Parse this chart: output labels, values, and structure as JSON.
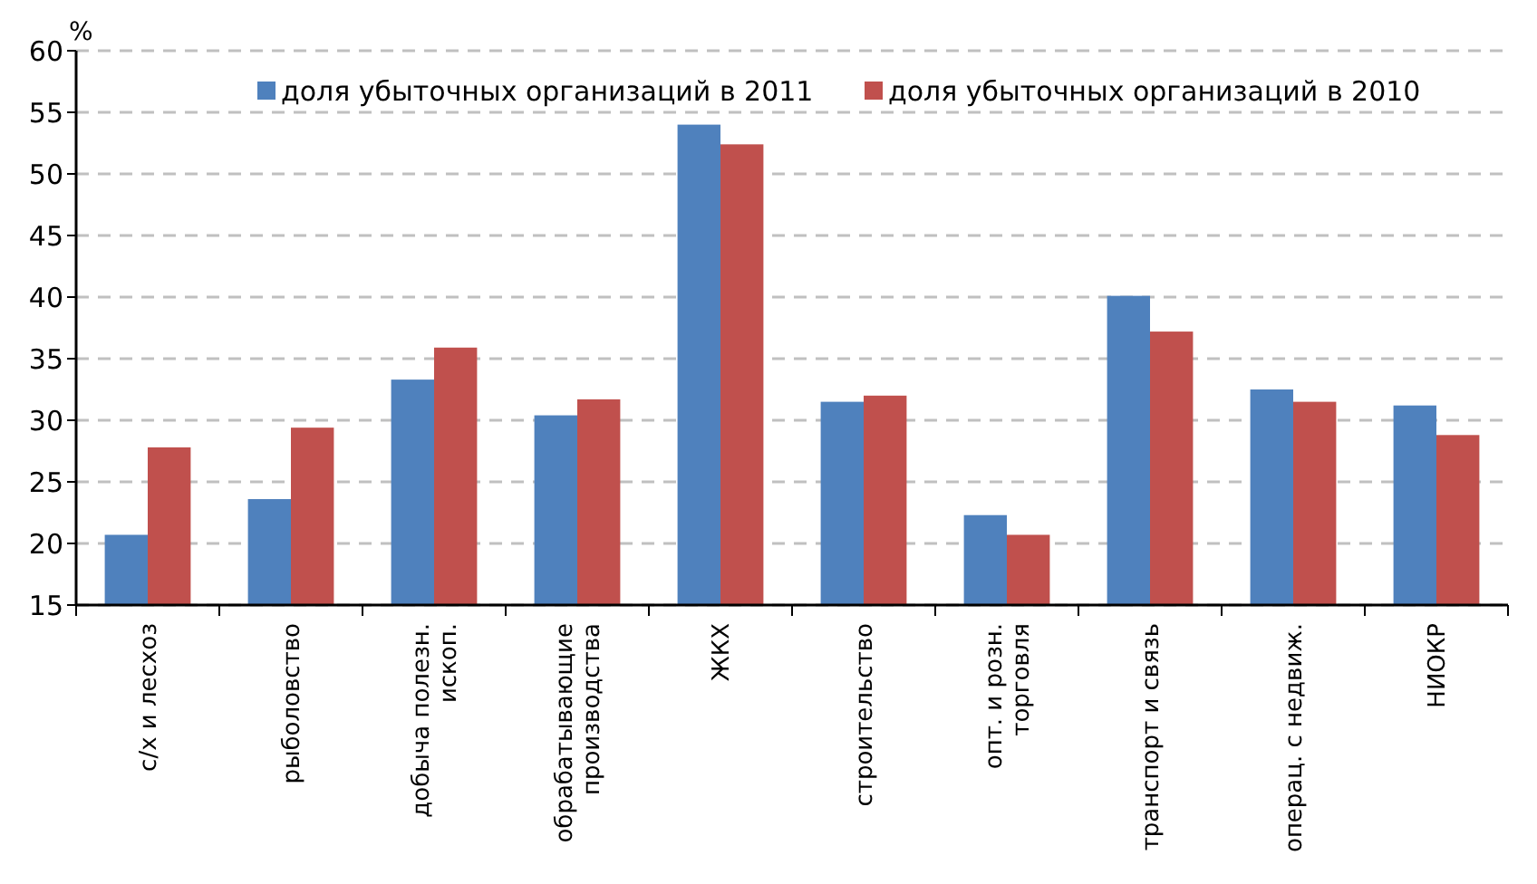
{
  "chart_data": {
    "type": "bar",
    "ylabel": "%",
    "categories": [
      "с/х и лесхоз",
      "рыболовство",
      "добыча полезн.\nископ.",
      "обрабатывающие\nпроизводства",
      "ЖКХ",
      "строительство",
      "опт. и розн.\nторговля",
      "транспорт и связь",
      "операц. с недвиж.",
      "НИОКР"
    ],
    "series": [
      {
        "name": "доля убыточных организаций в 2011",
        "color": "#4f81bd",
        "values": [
          20.7,
          23.6,
          33.3,
          30.4,
          54.0,
          31.5,
          22.3,
          40.1,
          32.5,
          31.2
        ]
      },
      {
        "name": "доля убыточных организаций в 2010",
        "color": "#c0504d",
        "values": [
          27.8,
          29.4,
          35.9,
          31.7,
          52.4,
          32.0,
          20.7,
          37.2,
          31.5,
          28.8
        ]
      }
    ],
    "ylim": [
      15,
      60
    ],
    "yticks": [
      15,
      20,
      25,
      30,
      35,
      40,
      45,
      50,
      55,
      60
    ],
    "grid": "y",
    "legend": "top"
  }
}
